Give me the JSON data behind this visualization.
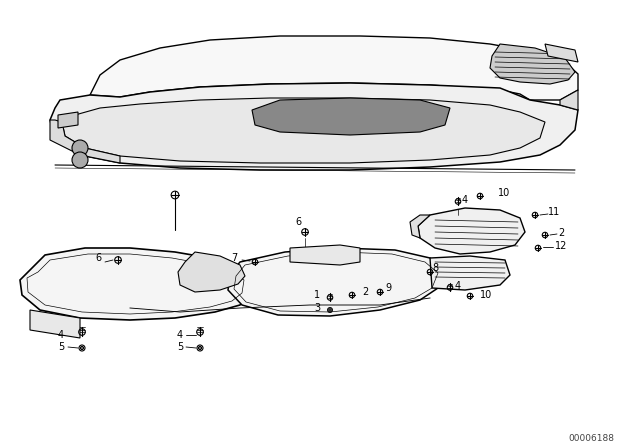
{
  "background_color": "#ffffff",
  "line_color": "#000000",
  "watermark_text": "00006188",
  "fig_width": 6.4,
  "fig_height": 4.48,
  "dpi": 100,
  "lw": 0.8
}
